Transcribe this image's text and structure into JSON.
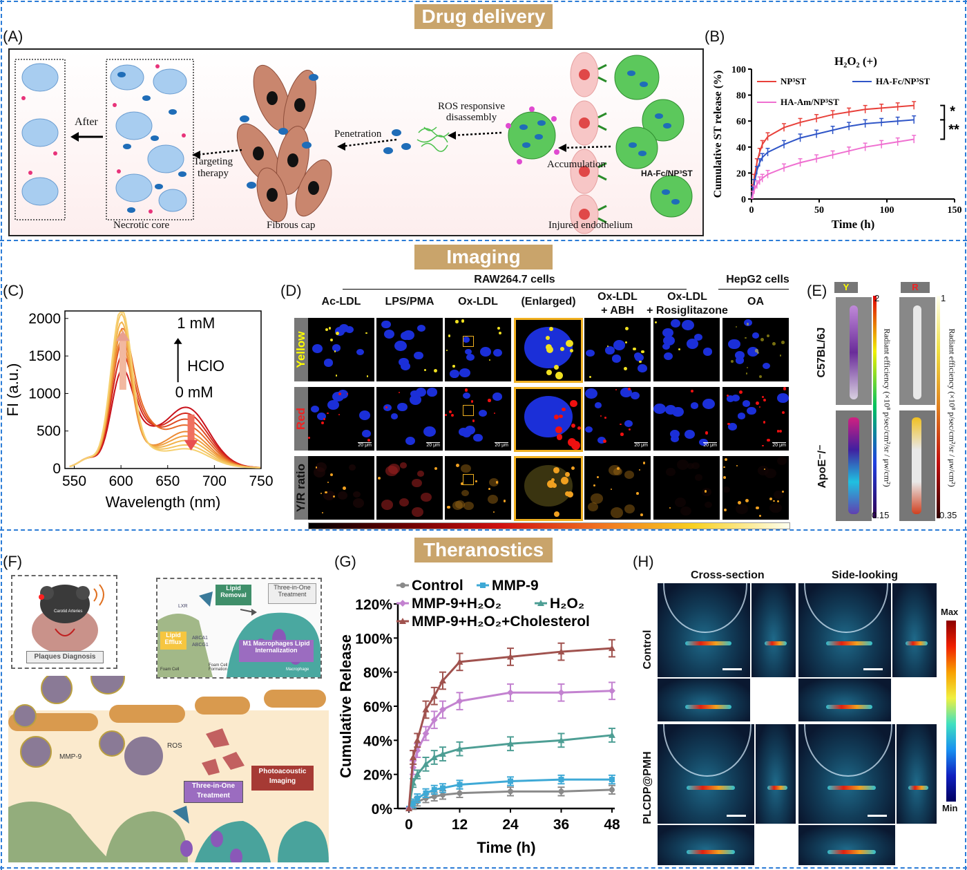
{
  "sections": {
    "drug_delivery": "Drug delivery",
    "imaging": "Imaging",
    "theranostics": "Theranostics"
  },
  "panels": {
    "A": "(A)",
    "B": "(B)",
    "C": "(C)",
    "D": "(D)",
    "E": "(E)",
    "F": "(F)",
    "G": "(G)",
    "H": "(H)"
  },
  "panelA": {
    "after": "After",
    "necrotic_core": "Necrotic core",
    "fibrous_cap": "Fibrous cap",
    "injured_endothelium": "Injured endothelium",
    "targeting_therapy_1": "Targeting",
    "targeting_therapy_2": "therapy",
    "penetration": "Penetration",
    "ros_1": "ROS responsive",
    "ros_2": "disassembly",
    "accumulation": "Accumulation",
    "np_label": "HA-Fc/NP³ST"
  },
  "panelB": {
    "title": "H₂O₂ (+)",
    "ylabel": "Cumulative ST release (%)",
    "xlabel": "Time (h)",
    "legend": [
      "NP³ST",
      "HA-Fc/NP³ST",
      "HA-Am/NP³ST"
    ],
    "sig1": "*",
    "sig2": "**",
    "colors": [
      "#e8403a",
      "#2f55c7",
      "#ef6fd0"
    ]
  },
  "panelC": {
    "ylabel": "FI (a.u.)",
    "xlabel": "Wavelength (nm)",
    "top_label": "1 mM",
    "bottom_label": "0 mM",
    "reagent": "HClO"
  },
  "panelD": {
    "group1": "RAW264.7 cells",
    "group2": "HepG2 cells",
    "columns": [
      "Ac-LDL",
      "LPS/PMA",
      "Ox-LDL",
      "(Enlarged)",
      "Ox-LDL\n+ ABH",
      "Ox-LDL\n+ Rosiglitazone",
      "OA"
    ],
    "rows": [
      "Yellow",
      "Red",
      "Y/R ratio"
    ],
    "scale": "20 μm"
  },
  "panelE": {
    "channels": [
      "Y",
      "R"
    ],
    "mice": [
      "C57BL/6J",
      "ApoE⁻/⁻"
    ],
    "cb1_max": "2",
    "cb1_min": "0.15",
    "cb2_max": "1",
    "cb2_min": "0.35",
    "cb_label": "Radiant efficiency (×10⁸ p/sec/cm²/sr / μw/cm²)"
  },
  "panelF": {
    "plaques": "Plaques Diagnosis",
    "lipid_removal": "Lipid Removal",
    "three_in_one_top": "Three-in-One Treatment",
    "lxr": "LXR",
    "lipid_efflux": "Lipid Efflux",
    "abca1": "ABCA1",
    "abcg1": "ABCG1",
    "m1": "M1 Macrophages Lipid Internalization",
    "foam_cell": "Foam Cell",
    "foam_cell_formation": "Foam Cell Formation",
    "macrophage": "Macrophage",
    "mmp9": "MMP-9",
    "ros": "ROS",
    "photo": "Photoacoustic Imaging",
    "three_in_one": "Three-in-One Treatment",
    "carotid": "Carotid Arteries"
  },
  "panelH": {
    "col1": "Cross-section",
    "col2": "Side-looking",
    "row1": "Control",
    "row2": "PLCDP@PMH",
    "max": "Max",
    "min": "Min"
  },
  "chart_data": [
    {
      "type": "line",
      "panel": "B",
      "title": "H₂O₂ (+)",
      "xlabel": "Time (h)",
      "ylabel": "Cumulative ST release (%)",
      "xlim": [
        0,
        150
      ],
      "ylim": [
        0,
        100
      ],
      "xticks": [
        0,
        50,
        100,
        150
      ],
      "yticks": [
        0,
        20,
        40,
        60,
        80,
        100
      ],
      "legend_position": "top",
      "series": [
        {
          "name": "NP³ST",
          "x": [
            0,
            1,
            2,
            4,
            6,
            8,
            12,
            24,
            36,
            48,
            60,
            72,
            84,
            96,
            108,
            120
          ],
          "y": [
            0,
            8,
            16,
            28,
            36,
            42,
            48,
            55,
            59,
            62,
            65,
            67,
            69,
            70,
            71,
            72
          ],
          "err": 3
        },
        {
          "name": "HA-Fc/NP³ST",
          "x": [
            0,
            1,
            2,
            4,
            6,
            8,
            12,
            24,
            36,
            48,
            60,
            72,
            84,
            96,
            108,
            120
          ],
          "y": [
            0,
            6,
            12,
            22,
            28,
            32,
            36,
            42,
            47,
            50,
            53,
            56,
            58,
            59,
            60,
            61
          ],
          "err": 3
        },
        {
          "name": "HA-Am/NP³ST",
          "x": [
            0,
            1,
            2,
            4,
            6,
            8,
            12,
            24,
            36,
            48,
            60,
            72,
            84,
            96,
            108,
            120
          ],
          "y": [
            0,
            3,
            7,
            11,
            14,
            16,
            19,
            24,
            28,
            31,
            34,
            37,
            40,
            42,
            44,
            46
          ],
          "err": 3
        }
      ]
    },
    {
      "type": "line",
      "panel": "C",
      "xlabel": "Wavelength (nm)",
      "ylabel": "FI (a.u.)",
      "xlim": [
        540,
        750
      ],
      "ylim": [
        0,
        2100
      ],
      "xticks": [
        550,
        600,
        650,
        700,
        750
      ],
      "yticks": [
        0,
        500,
        1000,
        1500,
        2000
      ],
      "series_count": 9,
      "peak1_nm": 600,
      "peak1_values": [
        1000,
        1150,
        1280,
        1420,
        1550,
        1680,
        1780,
        1880,
        1960
      ],
      "peak2_nm": 670,
      "peak2_values": [
        800,
        720,
        640,
        560,
        480,
        420,
        360,
        300,
        250
      ],
      "peak3_nm": 617,
      "peak3_value": 1190
    },
    {
      "type": "line",
      "panel": "G",
      "xlabel": "Time (h)",
      "ylabel": "Cumulative Release",
      "x": [
        0,
        1,
        2,
        4,
        6,
        8,
        12,
        24,
        36,
        48
      ],
      "xticks": [
        0,
        12,
        24,
        36,
        48
      ],
      "yticks": [
        "0%",
        "20%",
        "40%",
        "60%",
        "80%",
        "100%",
        "120%"
      ],
      "ylim": [
        0,
        120
      ],
      "legend_position": "top",
      "series": [
        {
          "name": "Control",
          "color": "#8a8a8a",
          "marker": "circle",
          "values": [
            0,
            2,
            4,
            6,
            7,
            8,
            9,
            10,
            10,
            11
          ]
        },
        {
          "name": "MMP-9",
          "color": "#3ea9d6",
          "marker": "square",
          "values": [
            0,
            3,
            6,
            9,
            11,
            12,
            14,
            16,
            17,
            17
          ]
        },
        {
          "name": "MMP-9+H₂O₂",
          "color": "#c382d0",
          "marker": "diamond",
          "values": [
            0,
            24,
            34,
            44,
            52,
            58,
            63,
            68,
            68,
            69
          ]
        },
        {
          "name": "H₂O₂",
          "color": "#4d9e94",
          "marker": "triangle",
          "values": [
            0,
            15,
            20,
            26,
            30,
            32,
            35,
            38,
            40,
            43
          ]
        },
        {
          "name": "MMP-9+H₂O₂+Cholesterol",
          "color": "#a0524e",
          "marker": "triangle",
          "values": [
            0,
            30,
            40,
            58,
            66,
            75,
            86,
            89,
            92,
            94
          ]
        }
      ]
    }
  ]
}
